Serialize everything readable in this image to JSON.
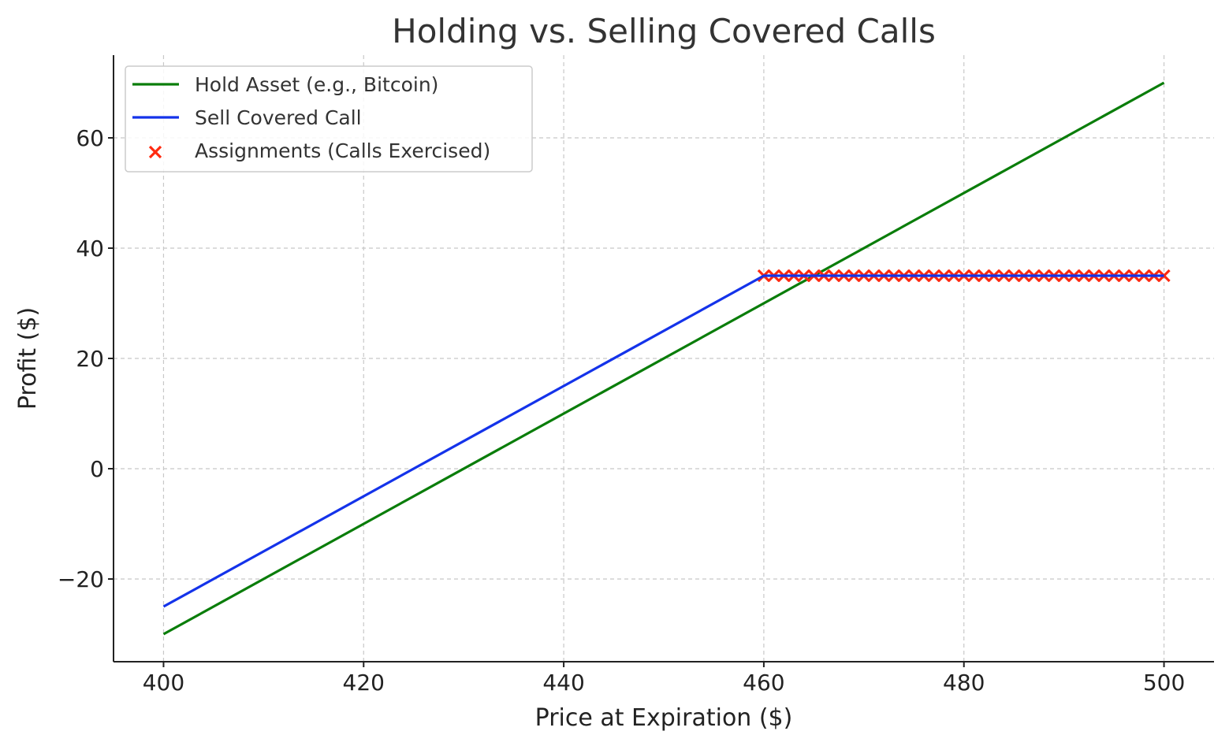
{
  "chart_data": {
    "type": "line",
    "title": "Holding vs. Selling Covered Calls",
    "xlabel": "Price at Expiration ($)",
    "ylabel": "Profit ($)",
    "xlim": [
      395,
      505
    ],
    "ylim": [
      -35,
      75
    ],
    "xticks": [
      400,
      420,
      440,
      460,
      480,
      500
    ],
    "yticks": [
      -20,
      0,
      20,
      40,
      60
    ],
    "xtick_labels": [
      "400",
      "420",
      "440",
      "460",
      "480",
      "500"
    ],
    "ytick_labels": [
      "−20",
      "0",
      "20",
      "40",
      "60"
    ],
    "grid": true,
    "legend_position": "top-left",
    "series": [
      {
        "name": "Hold Asset (e.g., Bitcoin)",
        "kind": "line",
        "color": "#0a7d0a",
        "x": [
          400,
          500
        ],
        "y": [
          -30,
          70
        ]
      },
      {
        "name": "Sell Covered Call",
        "kind": "line",
        "color": "#1433ea",
        "x": [
          400,
          460,
          500
        ],
        "y": [
          -25,
          35,
          35
        ]
      },
      {
        "name": "Assignments (Calls Exercised)",
        "kind": "scatter",
        "marker": "x",
        "color": "#ff2a10",
        "x": [
          460,
          461,
          462,
          463,
          464,
          465,
          466,
          467,
          468,
          469,
          470,
          471,
          472,
          473,
          474,
          475,
          476,
          477,
          478,
          479,
          480,
          481,
          482,
          483,
          484,
          485,
          486,
          487,
          488,
          489,
          490,
          491,
          492,
          493,
          494,
          495,
          496,
          497,
          498,
          499,
          500
        ],
        "y": [
          35,
          35,
          35,
          35,
          35,
          35,
          35,
          35,
          35,
          35,
          35,
          35,
          35,
          35,
          35,
          35,
          35,
          35,
          35,
          35,
          35,
          35,
          35,
          35,
          35,
          35,
          35,
          35,
          35,
          35,
          35,
          35,
          35,
          35,
          35,
          35,
          35,
          35,
          35,
          35,
          35
        ]
      }
    ]
  }
}
